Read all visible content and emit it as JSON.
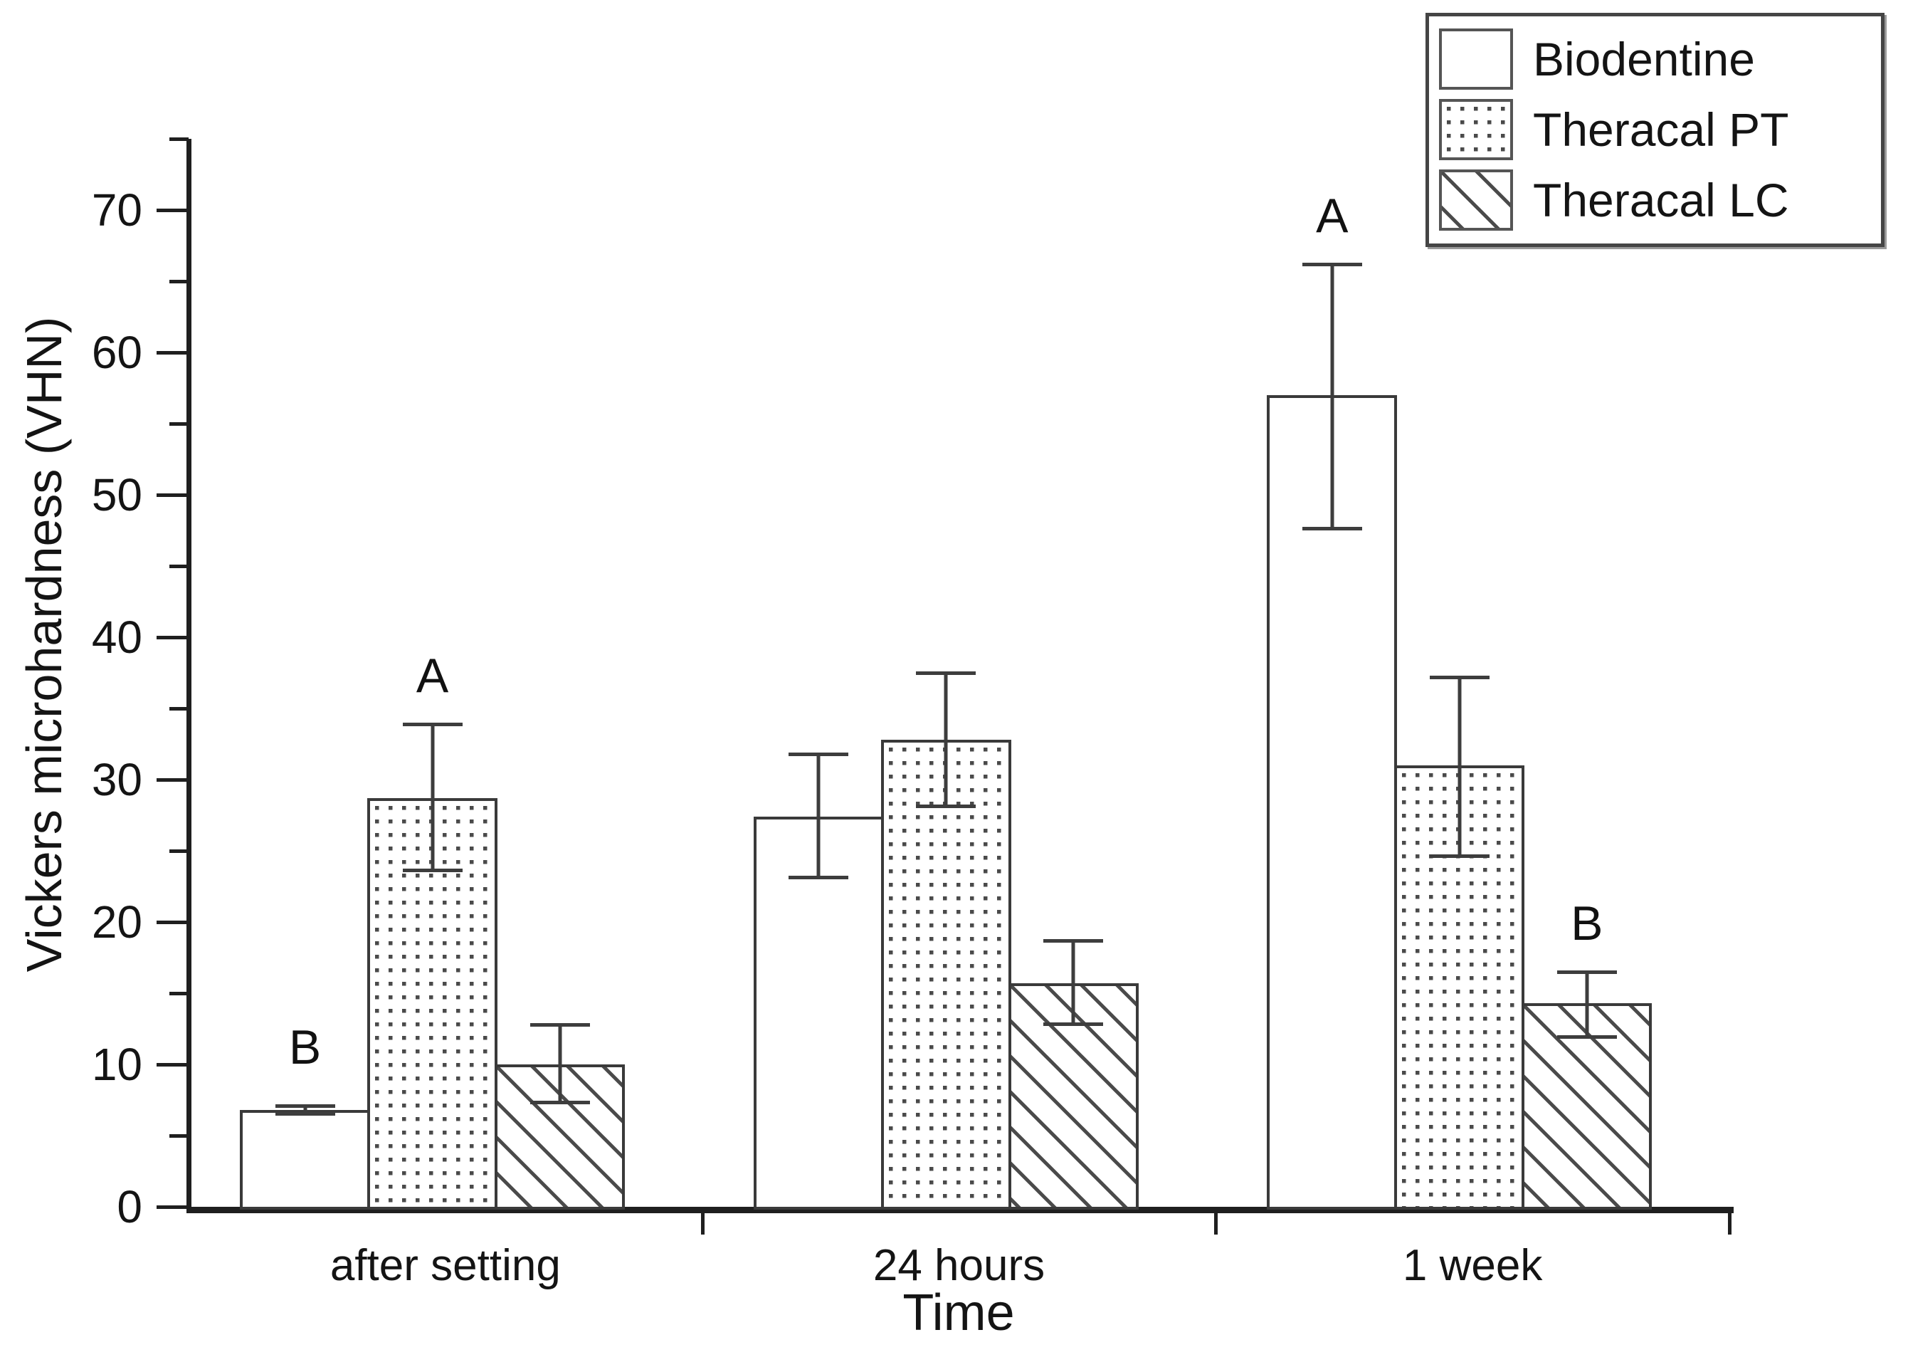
{
  "colors": {
    "background": "#ffffff",
    "axis": "#1f1f1f",
    "bar_border": "#3a3a3a",
    "error_bar": "#3d3d3d",
    "pattern_ink": "#4a4a4a",
    "text": "#141414"
  },
  "legend": {
    "entries": [
      "Biodentine",
      "Theracal PT",
      "Theracal LC"
    ]
  },
  "chart_data": {
    "type": "bar",
    "title": "",
    "xlabel": "Time",
    "ylabel": "Vickers microhardness (VHN)",
    "ylim": [
      0,
      75
    ],
    "yticks": [
      0,
      10,
      20,
      30,
      40,
      50,
      60,
      70
    ],
    "minor_ticks": [
      5,
      15,
      25,
      35,
      45,
      55,
      65,
      75
    ],
    "grid": false,
    "legend_position": "top-right",
    "categories": [
      "after setting",
      "24 hours",
      "1 week"
    ],
    "series": [
      {
        "name": "Biodentine",
        "pattern": "solid-white",
        "values": [
          6.8,
          27.4,
          57.0
        ],
        "err_low": [
          6.4,
          23.0,
          47.5
        ],
        "err_high": [
          7.2,
          31.9,
          66.3
        ]
      },
      {
        "name": "Theracal PT",
        "pattern": "dots",
        "values": [
          28.7,
          32.8,
          31.0
        ],
        "err_low": [
          23.5,
          28.0,
          24.5
        ],
        "err_high": [
          34.0,
          37.6,
          37.3
        ]
      },
      {
        "name": "Theracal LC",
        "pattern": "diagonal-hatch",
        "values": [
          10.0,
          15.7,
          14.3
        ],
        "err_low": [
          7.2,
          12.7,
          11.8
        ],
        "err_high": [
          12.9,
          18.8,
          16.6
        ]
      }
    ],
    "annotations": [
      {
        "text": "B",
        "category": 0,
        "series": 0,
        "y": 11.2
      },
      {
        "text": "A",
        "category": 0,
        "series": 1,
        "y": 37.3
      },
      {
        "text": "A",
        "category": 2,
        "series": 0,
        "y": 69.6
      },
      {
        "text": "B",
        "category": 2,
        "series": 2,
        "y": 19.9
      }
    ]
  }
}
